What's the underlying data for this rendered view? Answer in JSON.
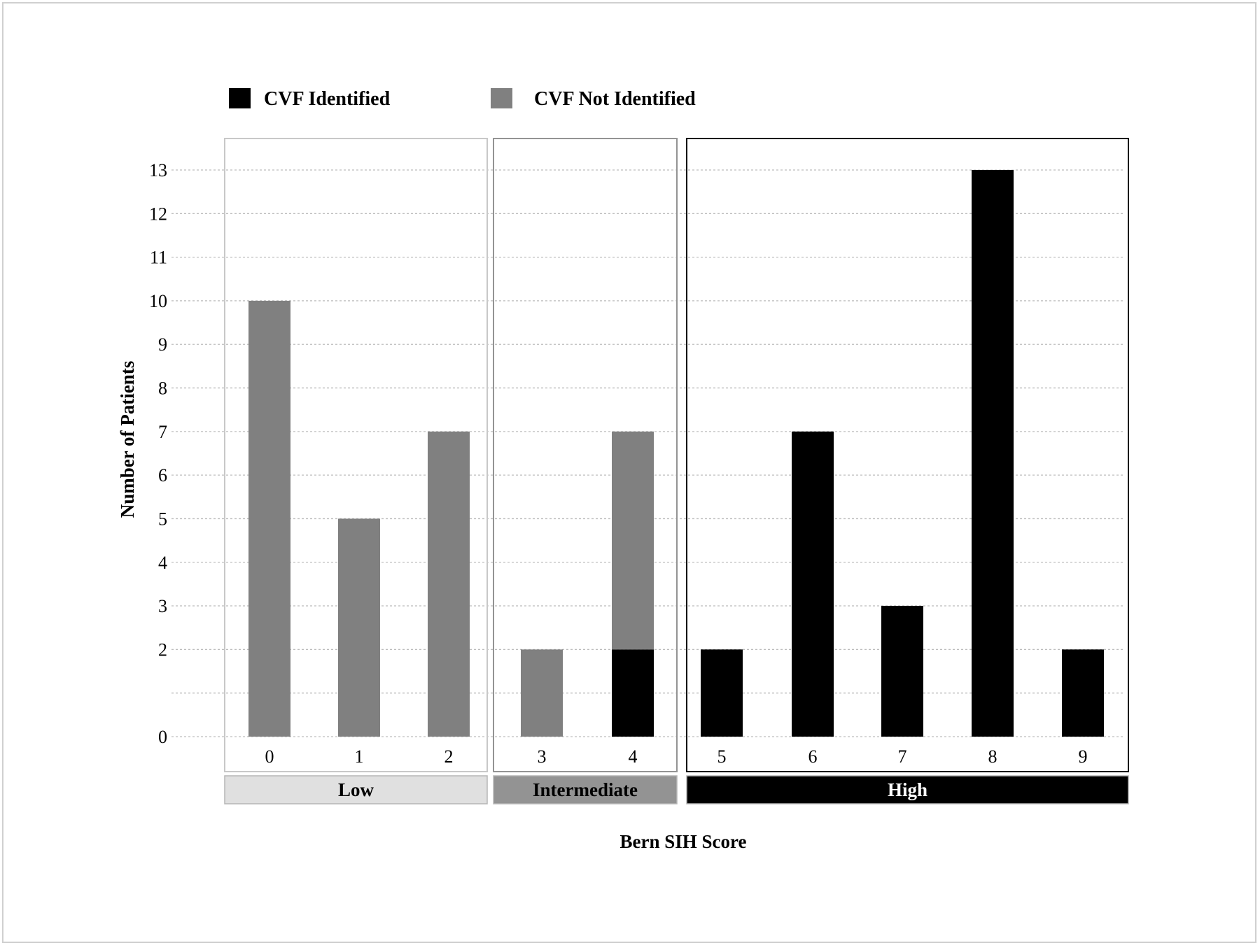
{
  "chart_data": {
    "type": "bar",
    "stacked": true,
    "categories": [
      "0",
      "1",
      "2",
      "3",
      "4",
      "5",
      "6",
      "7",
      "8",
      "9"
    ],
    "series": [
      {
        "name": "CVF Identified",
        "color": "#000000",
        "values": [
          0,
          0,
          0,
          0,
          2,
          2,
          7,
          3,
          13,
          2
        ]
      },
      {
        "name": "CVF Not Identified",
        "color": "#808080",
        "values": [
          10,
          5,
          7,
          2,
          5,
          0,
          0,
          0,
          0,
          0
        ]
      }
    ],
    "xlabel": "Bern SIH Score",
    "ylabel": "Number of Patients",
    "yticks": [
      "0",
      "2",
      "3",
      "4",
      "5",
      "6",
      "7",
      "8",
      "9",
      "10",
      "11",
      "12",
      "13"
    ],
    "ylim": [
      0,
      13
    ],
    "grid": true,
    "legend_position": "top-left",
    "groups": [
      {
        "label": "Low",
        "categories": [
          "0",
          "1",
          "2"
        ],
        "fill": "#e0e0e0",
        "text_color": "#000000",
        "border": "#c8c8c8"
      },
      {
        "label": "Intermediate",
        "categories": [
          "3",
          "4"
        ],
        "fill": "#939393",
        "text_color": "#000000",
        "border": "#939393"
      },
      {
        "label": "High",
        "categories": [
          "5",
          "6",
          "7",
          "8",
          "9"
        ],
        "fill": "#000000",
        "text_color": "#ffffff",
        "border": "#000000"
      }
    ]
  }
}
